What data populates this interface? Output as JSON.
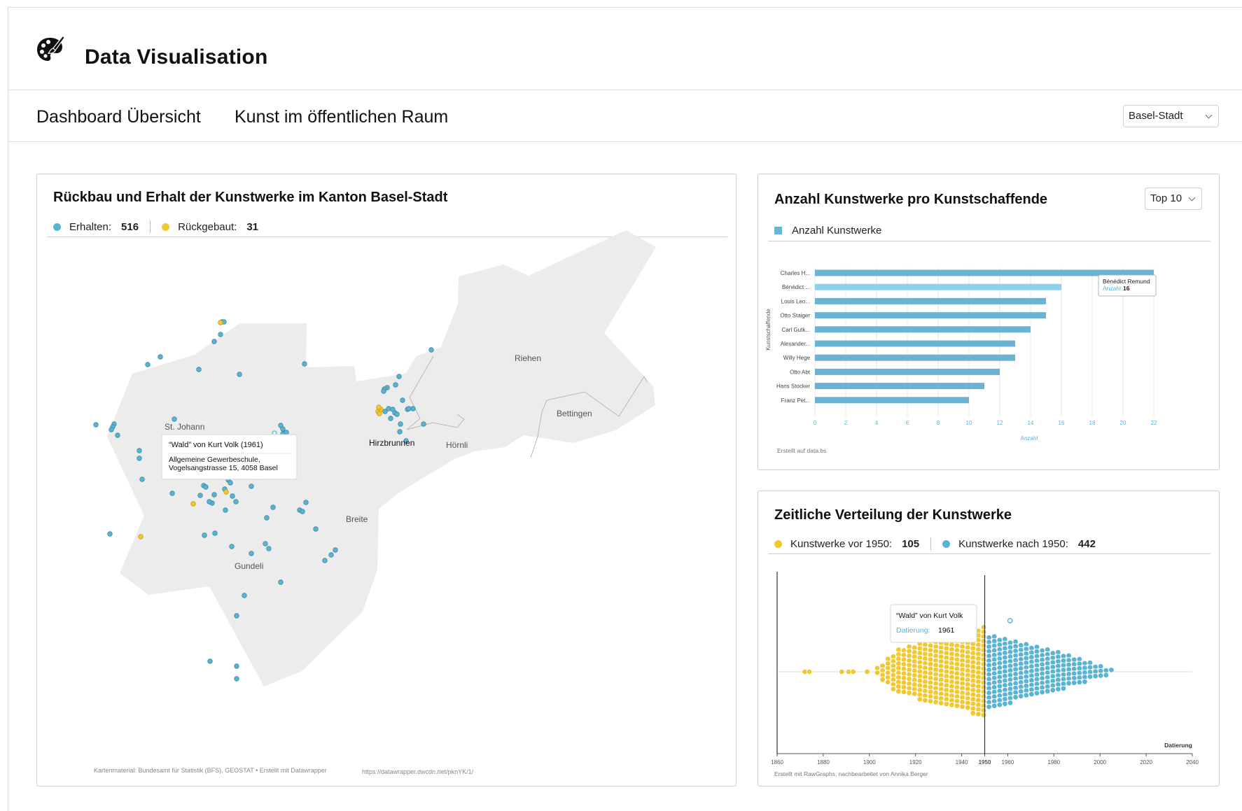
{
  "app": {
    "title": "Data Visualisation",
    "icon": "palette-icon"
  },
  "nav": {
    "tabs": [
      {
        "label": "Dashboard Übersicht"
      },
      {
        "label": "Kunst im öffentlichen Raum"
      }
    ],
    "region_select": {
      "value": "Basel-Stadt"
    }
  },
  "colors": {
    "blue": "#5ab4d1",
    "yellow": "#f2c830",
    "bar": "#6cb2d3",
    "bar_highlight": "#8fd0ea",
    "map_land": "#ececec"
  },
  "map_card": {
    "title": "Rückbau und Erhalt der Kunstwerke im Kanton Basel-Stadt",
    "legend": [
      {
        "label": "Erhalten:",
        "value": "516",
        "color": "#5ab4d1"
      },
      {
        "label": "Rückgebaut:",
        "value": "31",
        "color": "#f2c830"
      }
    ],
    "place_labels": [
      "Riehen",
      "Bettingen",
      "St. Johann",
      "Hirzbrunnen",
      "Hörnli",
      "Breite",
      "Gundeli"
    ],
    "tooltip": {
      "title": "“Wald” von Kurt Volk (1961)",
      "line1": "Allgemeine Gewerbeschule,",
      "line2": "Vogelsangstrasse 15, 4058 Basel"
    },
    "credit": "Kartenmaterial: Bundesamt für Statistik (BFS), GEOSTAT • Erstellt mit Datawrapper",
    "url": "https://datawrapper.dwcdn.net/pknYK/1/"
  },
  "bar_card": {
    "title": "Anzahl Kunstwerke pro Kunstschaffende",
    "select": {
      "value": "Top 10"
    },
    "legend_label": "Anzahl Kunstwerke",
    "tooltip": {
      "name": "Bénédict Remund",
      "key": "Anzahl",
      "value": "16"
    },
    "credit": "Erstellt auf data.bs"
  },
  "swarm_card": {
    "title": "Zeitliche Verteilung der Kunstwerke",
    "legend": [
      {
        "label": "Kunstwerke vor 1950:",
        "value": "105",
        "color": "#f2c830"
      },
      {
        "label": "Kunstwerke nach 1950:",
        "value": "442",
        "color": "#5ab4d1"
      }
    ],
    "tooltip": {
      "title": "“Wald” von Kurt Volk",
      "key": "Datierung:",
      "value": "1961"
    },
    "credit": "Erstellt mit RawGraphs, nachbearbeitet von Annika Berger"
  },
  "chart_data": [
    {
      "type": "bar",
      "orientation": "horizontal",
      "categories": [
        "Charles H...",
        "Bénédict ...",
        "Louis Leo...",
        "Otto Staiger",
        "Carl Gutk...",
        "Alexander...",
        "Willy Hege",
        "Otto Abt",
        "Hans Stocker",
        "Franz Pet..."
      ],
      "values": [
        22,
        16,
        15,
        15,
        14,
        13,
        13,
        12,
        11,
        10
      ],
      "highlighted_index": 1,
      "xlabel": "Anzahl",
      "ylabel": "Kunstschaffende",
      "xlim": [
        0,
        22
      ],
      "xticks": [
        0,
        2,
        4,
        6,
        8,
        10,
        12,
        14,
        16,
        18,
        20,
        22
      ],
      "grid": true
    },
    {
      "type": "scatter",
      "subtype": "beeswarm",
      "xlabel": "Datierung",
      "xlim": [
        1860,
        2040
      ],
      "xticks": [
        1860,
        1880,
        1900,
        1920,
        1940,
        1950,
        1960,
        1980,
        2000,
        2020,
        2040
      ],
      "split": 1950,
      "series": [
        {
          "name": "Kunstwerke vor 1950",
          "count": 105
        },
        {
          "name": "Kunstwerke nach 1950",
          "count": 442
        }
      ],
      "highlight": {
        "year": 1961
      }
    }
  ]
}
